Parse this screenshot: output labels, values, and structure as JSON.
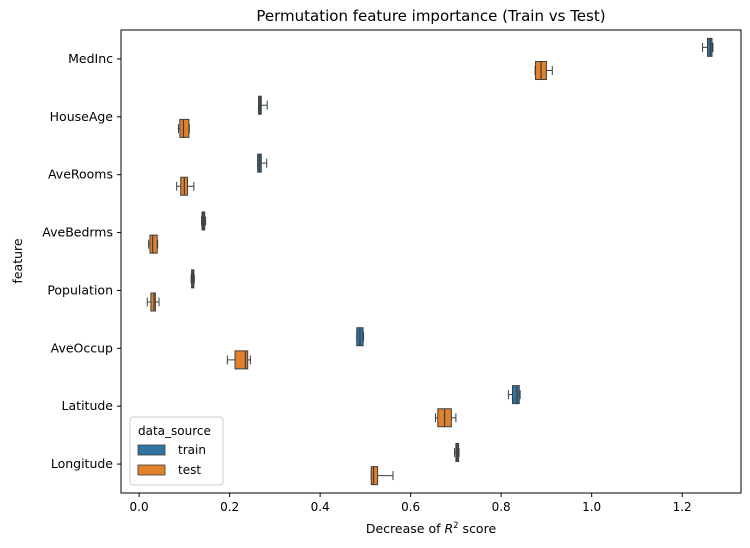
{
  "chart_data": {
    "type": "boxplot",
    "orientation": "horizontal",
    "title": "Permutation feature importance (Train vs Test)",
    "xlabel_prefix": "Decrease of ",
    "xlabel_math": "R",
    "xlabel_sup": "2",
    "xlabel_suffix": " score",
    "ylabel": "feature",
    "xlim": [
      -0.04,
      1.33
    ],
    "xticks": [
      "0.0",
      "0.2",
      "0.4",
      "0.6",
      "0.8",
      "1.0",
      "1.2"
    ],
    "categories": [
      "MedInc",
      "HouseAge",
      "AveRooms",
      "AveBedrms",
      "Population",
      "AveOccup",
      "Latitude",
      "Longitude"
    ],
    "legend": {
      "title": "data_source",
      "position": "lower-left"
    },
    "series": [
      {
        "name": "train",
        "color": "#3274a1",
        "boxes": [
          {
            "whislo": 1.245,
            "q1": 1.256,
            "med": 1.262,
            "q3": 1.266,
            "whishi": 1.268
          },
          {
            "whislo": 0.264,
            "q1": 0.264,
            "med": 0.267,
            "q3": 0.27,
            "whishi": 0.283
          },
          {
            "whislo": 0.262,
            "q1": 0.262,
            "med": 0.266,
            "q3": 0.27,
            "whishi": 0.282
          },
          {
            "whislo": 0.138,
            "q1": 0.139,
            "med": 0.142,
            "q3": 0.145,
            "whishi": 0.147
          },
          {
            "whislo": 0.115,
            "q1": 0.116,
            "med": 0.119,
            "q3": 0.121,
            "whishi": 0.122
          },
          {
            "whislo": 0.481,
            "q1": 0.481,
            "med": 0.488,
            "q3": 0.495,
            "whishi": 0.496
          },
          {
            "whislo": 0.816,
            "q1": 0.825,
            "med": 0.835,
            "q3": 0.84,
            "whishi": 0.842
          },
          {
            "whislo": 0.697,
            "q1": 0.7,
            "med": 0.703,
            "q3": 0.706,
            "whishi": 0.707
          }
        ]
      },
      {
        "name": "test",
        "color": "#e1812c",
        "boxes": [
          {
            "whislo": 0.875,
            "q1": 0.876,
            "med": 0.888,
            "q3": 0.9,
            "whishi": 0.913
          },
          {
            "whislo": 0.087,
            "q1": 0.09,
            "med": 0.098,
            "q3": 0.11,
            "whishi": 0.111
          },
          {
            "whislo": 0.083,
            "q1": 0.092,
            "med": 0.1,
            "q3": 0.107,
            "whishi": 0.121
          },
          {
            "whislo": 0.021,
            "q1": 0.024,
            "med": 0.03,
            "q3": 0.04,
            "whishi": 0.041
          },
          {
            "whislo": 0.018,
            "q1": 0.026,
            "med": 0.033,
            "q3": 0.036,
            "whishi": 0.044
          },
          {
            "whislo": 0.195,
            "q1": 0.212,
            "med": 0.235,
            "q3": 0.24,
            "whishi": 0.246
          },
          {
            "whislo": 0.655,
            "q1": 0.66,
            "med": 0.675,
            "q3": 0.69,
            "whishi": 0.7
          },
          {
            "whislo": 0.513,
            "q1": 0.513,
            "med": 0.518,
            "q3": 0.527,
            "whishi": 0.561
          }
        ]
      }
    ]
  }
}
